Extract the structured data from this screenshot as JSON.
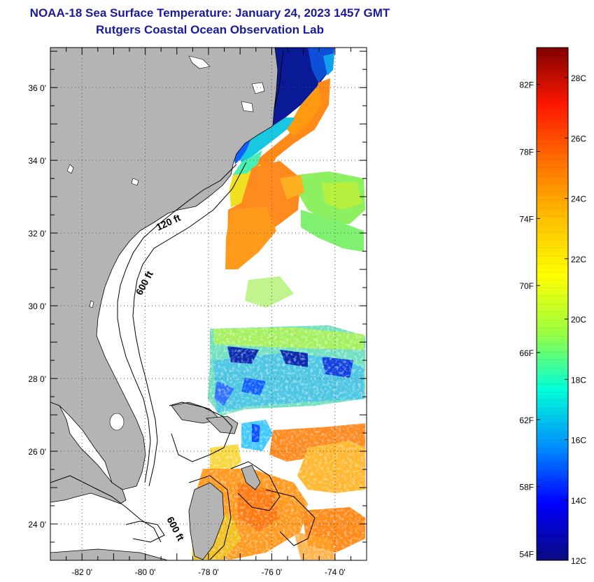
{
  "title_line1": "NOAA-18 Sea Surface Temperature:  January 24, 2023 1457 GMT",
  "title_line2": "Rutgers Coastal Ocean Observation Lab",
  "map": {
    "lat_ticks": [
      {
        "lat": 36,
        "label": "36 0'"
      },
      {
        "lat": 34,
        "label": "34 0'"
      },
      {
        "lat": 32,
        "label": "32 0'"
      },
      {
        "lat": 30,
        "label": "30 0'"
      },
      {
        "lat": 28,
        "label": "28 0'"
      },
      {
        "lat": 26,
        "label": "26 0'"
      },
      {
        "lat": 24,
        "label": "24 0'"
      }
    ],
    "lon_ticks": [
      {
        "lon": -82,
        "label": "-82 0'"
      },
      {
        "lon": -80,
        "label": "-80 0'"
      },
      {
        "lon": -78,
        "label": "-78 0'"
      },
      {
        "lon": -76,
        "label": "-76 0'"
      },
      {
        "lon": -74,
        "label": "-74 0'"
      }
    ],
    "lon_range": [
      -83,
      -73
    ],
    "lat_range": [
      23,
      37.1
    ],
    "isobath_labels": {
      "shallow": "120 ft",
      "deep": "600 ft",
      "deep_south": "600 ft"
    },
    "colors": {
      "land": "#b4b4b4",
      "grid": "#555555",
      "isobath": "#000000"
    }
  },
  "colorbar": {
    "min_c": 12,
    "max_c": 29,
    "celsius_labels": [
      {
        "value": 28,
        "label": "28C"
      },
      {
        "value": 26,
        "label": "26C"
      },
      {
        "value": 24,
        "label": "24C"
      },
      {
        "value": 22,
        "label": "22C"
      },
      {
        "value": 20,
        "label": "20C"
      },
      {
        "value": 18,
        "label": "18C"
      },
      {
        "value": 16,
        "label": "16C"
      },
      {
        "value": 14,
        "label": "14C"
      },
      {
        "value": 12,
        "label": "12C"
      }
    ],
    "fahrenheit_labels": [
      {
        "value": 82,
        "label": "82F"
      },
      {
        "value": 78,
        "label": "78F"
      },
      {
        "value": 74,
        "label": "74F"
      },
      {
        "value": 70,
        "label": "70F"
      },
      {
        "value": 66,
        "label": "66F"
      },
      {
        "value": 62,
        "label": "62F"
      },
      {
        "value": 58,
        "label": "58F"
      },
      {
        "value": 54,
        "label": "54F"
      }
    ],
    "stops": [
      "#0a0a80",
      "#0000ff",
      "#0090ff",
      "#00ffd8",
      "#9cff40",
      "#ffff00",
      "#ffc000",
      "#ff7000",
      "#ff1800",
      "#800000"
    ]
  }
}
